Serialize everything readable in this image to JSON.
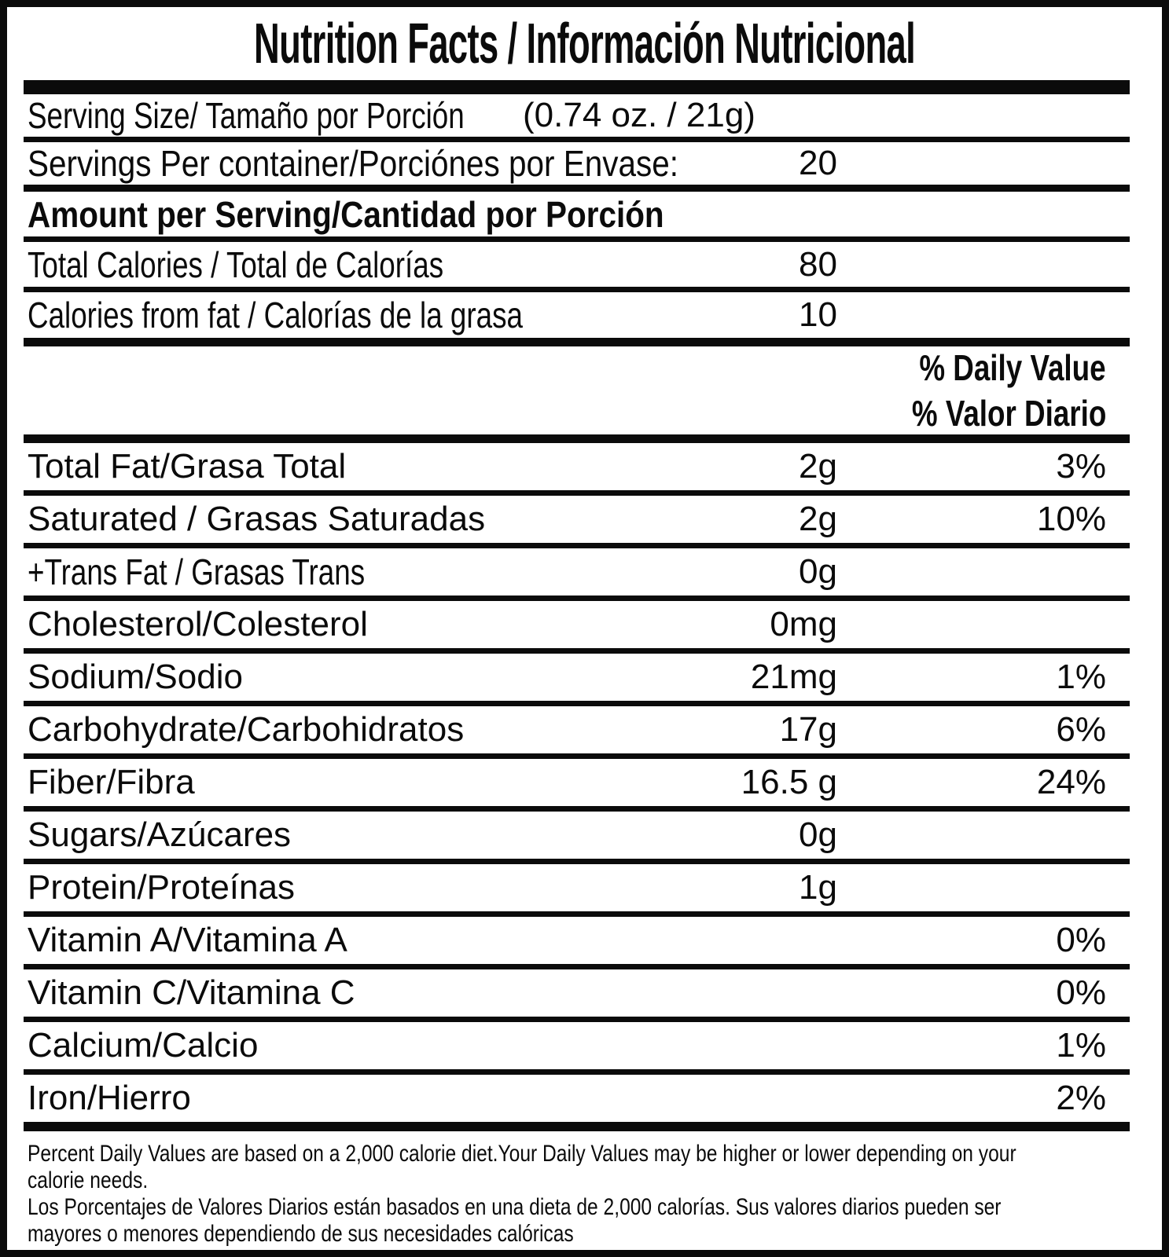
{
  "colors": {
    "ink": "#0b0b0b",
    "background": "#ffffff"
  },
  "title": "Nutrition Facts / Información Nutricional",
  "serving": {
    "size_label": "Serving Size/ Tamaño por Porción",
    "size_value": "(0.74 oz. / 21g)",
    "per_container_label": "Servings Per container/Porciónes por Envase:",
    "per_container_value": "20"
  },
  "amount_per_serving_header": "Amount per Serving/Cantidad por Porción",
  "calories": {
    "total_label": "Total Calories / Total de Calorías",
    "total_value": "80",
    "from_fat_label": "Calories from fat / Calorías de la grasa",
    "from_fat_value": "10"
  },
  "daily_value_header": {
    "en": "% Daily Value",
    "es": "% Valor Diario"
  },
  "nutrients": [
    {
      "label": "Total Fat/Grasa Total",
      "amount": "2g",
      "dv": "3%"
    },
    {
      "label": "Saturated / Grasas Saturadas",
      "amount": "2g",
      "dv": "10%"
    },
    {
      "label": "+Trans Fat / Grasas Trans",
      "amount": "0g",
      "dv": ""
    },
    {
      "label": "Cholesterol/Colesterol",
      "amount": "0mg",
      "dv": ""
    },
    {
      "label": "Sodium/Sodio",
      "amount": "21mg",
      "dv": "1%"
    },
    {
      "label": "Carbohydrate/Carbohidratos",
      "amount": "17g",
      "dv": "6%"
    },
    {
      "label": "Fiber/Fibra",
      "amount": "16.5 g",
      "dv": "24%"
    },
    {
      "label": "Sugars/Azúcares",
      "amount": "0g",
      "dv": ""
    },
    {
      "label": "Protein/Proteínas",
      "amount": "1g",
      "dv": ""
    },
    {
      "label": "Vitamin A/Vitamina A",
      "amount": "",
      "dv": "0%"
    },
    {
      "label": "Vitamin C/Vitamina C",
      "amount": "",
      "dv": "0%"
    },
    {
      "label": "Calcium/Calcio",
      "amount": "",
      "dv": "1%"
    },
    {
      "label": "Iron/Hierro",
      "amount": "",
      "dv": "2%"
    }
  ],
  "footnote": {
    "en": [
      "Percent Daily Values are based on a 2,000 calorie diet.Your Daily Values may be higher or lower depending on your",
      "calorie needs."
    ],
    "es": [
      "Los Porcentajes de Valores Diarios están basados en una dieta de 2,000 calorías. Sus valores diarios pueden ser",
      "mayores o menores dependiendo de sus necesidades calóricas"
    ]
  }
}
